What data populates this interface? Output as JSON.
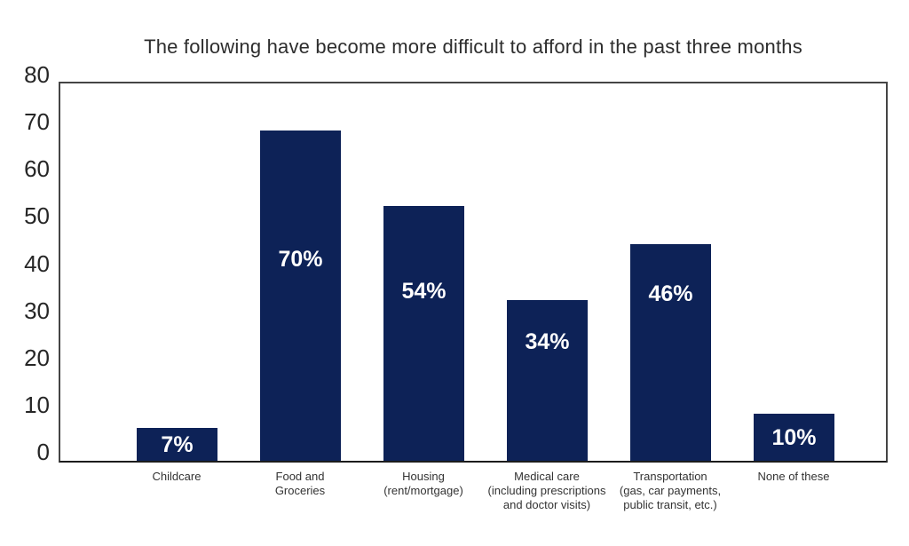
{
  "title": "The following have become more difficult to afford in the past three months",
  "chart_data": {
    "type": "bar",
    "title": "The following have become more difficult to afford in the past three months",
    "categories": [
      [
        "Childcare"
      ],
      [
        "Food and",
        "Groceries"
      ],
      [
        "Housing",
        "(rent/mortgage)"
      ],
      [
        "Medical care",
        "(including prescriptions",
        "and doctor visits)"
      ],
      [
        "Transportation",
        "(gas, car payments,",
        "public transit, etc.)"
      ],
      [
        "None of these"
      ]
    ],
    "values": [
      7,
      70,
      54,
      34,
      46,
      10
    ],
    "value_labels": [
      "7%",
      "70%",
      "54%",
      "34%",
      "46%",
      "10%"
    ],
    "xlabel": "",
    "ylabel": "",
    "ylim": [
      0,
      80
    ],
    "yticks": [
      0,
      10,
      20,
      30,
      40,
      50,
      60,
      70,
      80
    ],
    "grid": false,
    "legend": "none",
    "colors": {
      "bar": "#0d2257",
      "value_label": "#ffffff",
      "text": "#2d2d2d",
      "plot_border": "#454545"
    }
  }
}
